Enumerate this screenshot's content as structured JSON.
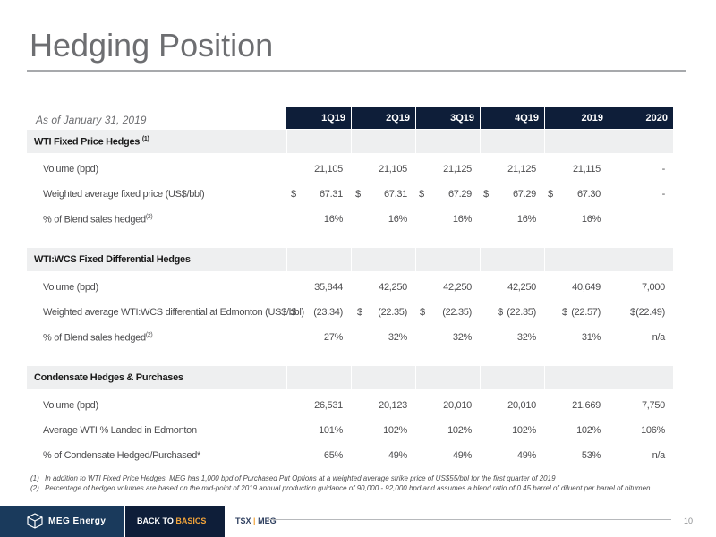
{
  "title": "Hedging Position",
  "as_of": "As of January 31, 2019",
  "columns": [
    "1Q19",
    "2Q19",
    "3Q19",
    "4Q19",
    "2019",
    "2020"
  ],
  "sections": [
    {
      "label": "WTI Fixed Price Hedges",
      "sup": "(1)",
      "rows": [
        {
          "label": "Volume (bpd)",
          "sup": "",
          "values": [
            "21,105",
            "21,105",
            "21,125",
            "21,125",
            "21,115",
            "-"
          ],
          "currency": [
            false,
            false,
            false,
            false,
            false,
            false
          ]
        },
        {
          "label": "Weighted average fixed price (US$/bbl)",
          "sup": "",
          "values": [
            "67.31",
            "67.31",
            "67.29",
            "67.29",
            "67.30",
            "-"
          ],
          "currency": [
            true,
            true,
            true,
            true,
            true,
            false
          ]
        },
        {
          "label": "% of Blend sales hedged",
          "sup": "(2)",
          "values": [
            "16%",
            "16%",
            "16%",
            "16%",
            "16%",
            ""
          ],
          "currency": [
            false,
            false,
            false,
            false,
            false,
            false
          ]
        }
      ]
    },
    {
      "label": "WTI:WCS Fixed Differential Hedges",
      "sup": "",
      "rows": [
        {
          "label": "Volume (bpd)",
          "sup": "",
          "values": [
            "35,844",
            "42,250",
            "42,250",
            "42,250",
            "40,649",
            "7,000"
          ],
          "currency": [
            false,
            false,
            false,
            false,
            false,
            false
          ]
        },
        {
          "label": "Weighted average WTI:WCS differential at Edmonton (US$/bbl)",
          "sup": "",
          "values": [
            "(23.34)",
            "(22.35)",
            "(22.35)",
            "(22.35)",
            "(22.57)",
            "(22.49)"
          ],
          "currency": [
            true,
            true,
            true,
            true,
            true,
            true
          ]
        },
        {
          "label": "% of Blend sales hedged",
          "sup": "(2)",
          "values": [
            "27%",
            "32%",
            "32%",
            "32%",
            "31%",
            "n/a"
          ],
          "currency": [
            false,
            false,
            false,
            false,
            false,
            false
          ]
        }
      ]
    },
    {
      "label": "Condensate Hedges & Purchases",
      "sup": "",
      "rows": [
        {
          "label": "Volume (bpd)",
          "sup": "",
          "values": [
            "26,531",
            "20,123",
            "20,010",
            "20,010",
            "21,669",
            "7,750"
          ],
          "currency": [
            false,
            false,
            false,
            false,
            false,
            false
          ]
        },
        {
          "label": "Average WTI % Landed in Edmonton",
          "sup": "",
          "values": [
            "101%",
            "102%",
            "102%",
            "102%",
            "102%",
            "106%"
          ],
          "currency": [
            false,
            false,
            false,
            false,
            false,
            false
          ]
        },
        {
          "label": "% of Condensate Hedged/Purchased*",
          "sup": "",
          "values": [
            "65%",
            "49%",
            "49%",
            "49%",
            "53%",
            "n/a"
          ],
          "currency": [
            false,
            false,
            false,
            false,
            false,
            false
          ]
        }
      ]
    }
  ],
  "currency_symbol": "$",
  "footnotes": [
    {
      "num": "(1)",
      "text": "In addition to WTI Fixed Price Hedges, MEG has 1,000 bpd of Purchased Put Options at a weighted average strike price of US$55/bbl for the first quarter of 2019"
    },
    {
      "num": "(2)",
      "text": "Percentage of hedged volumes are based on the mid-point of 2019 annual production guidance of 90,000 - 92,000 bpd and assumes a blend ratio of 0.45 barrel of diluent per barrel of bitumen"
    }
  ],
  "footer": {
    "logo_text": "MEG Energy",
    "back_to": "BACK TO",
    "basics": "BASICS",
    "tsx": "TSX",
    "sep": "|",
    "meg": "MEG",
    "page": "10"
  },
  "colors": {
    "header_bg": "#0e1e39",
    "section_bg": "#eeeff0",
    "accent": "#f2a43a",
    "title": "#6d6e71"
  }
}
